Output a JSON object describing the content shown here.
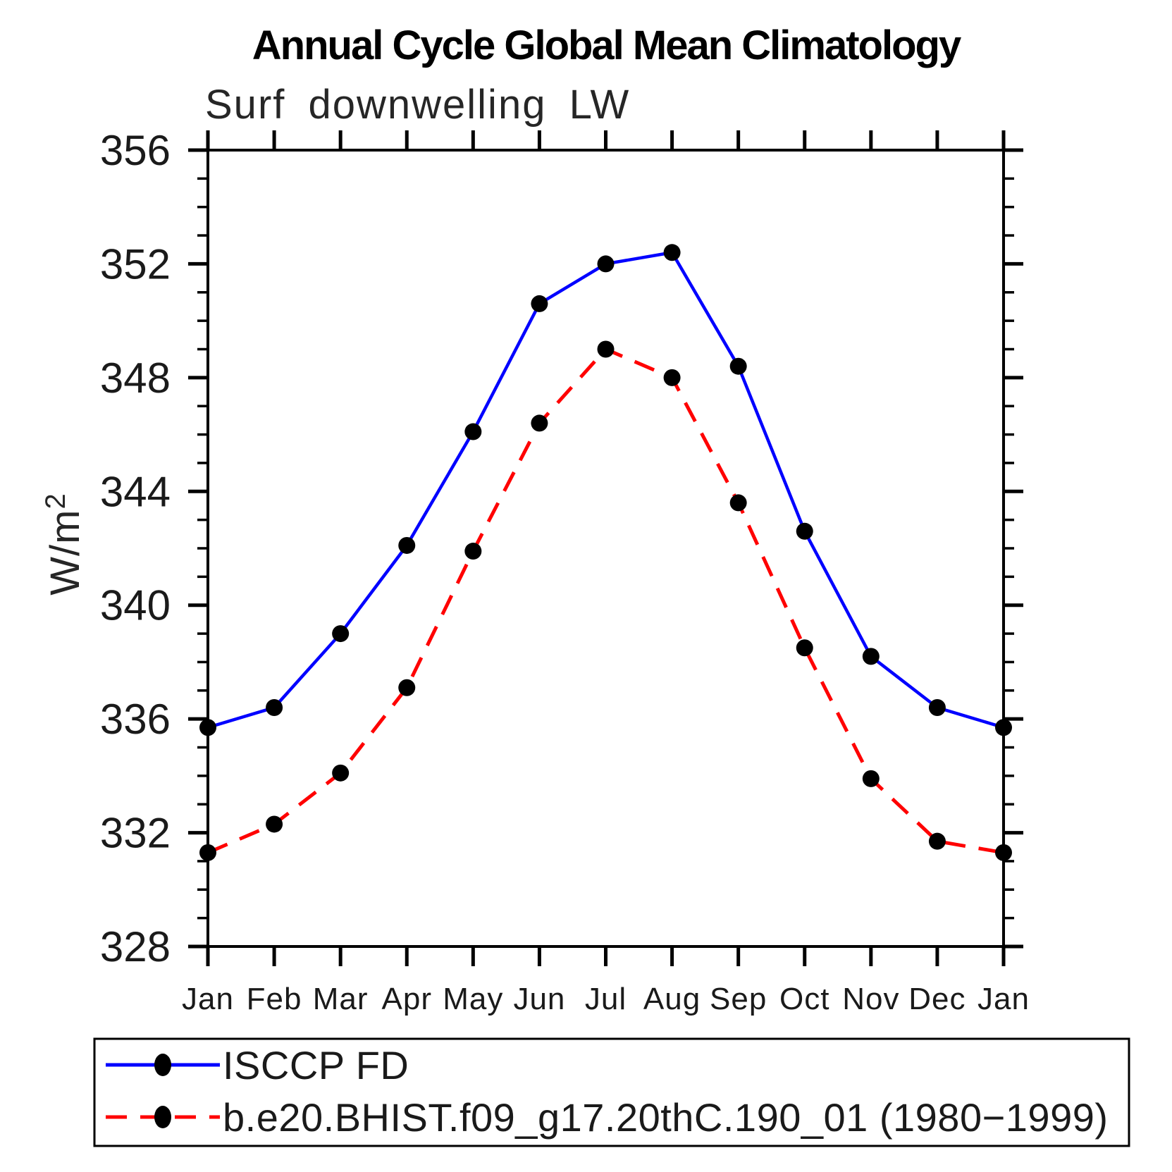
{
  "chart_data": {
    "type": "line",
    "title": "Annual Cycle Global Mean Climatology",
    "subtitle": "Surf downwelling LW",
    "ylabel_base": "W/m",
    "ylabel_sup": "2",
    "categories": [
      "Jan",
      "Feb",
      "Mar",
      "Apr",
      "May",
      "Jun",
      "Jul",
      "Aug",
      "Sep",
      "Oct",
      "Nov",
      "Dec",
      "Jan"
    ],
    "ylim": [
      328,
      356
    ],
    "ytick_major_step": 4,
    "ytick_minor_step": 1,
    "grid": false,
    "legend_position": "bottom-left",
    "axis_color": "#000000",
    "marker_color": "#000000",
    "series": [
      {
        "name": "ISCCP FD",
        "color": "#0000ff",
        "line_style": "solid",
        "marker": "circle",
        "values": [
          335.7,
          336.4,
          339.0,
          342.1,
          346.1,
          350.6,
          352.0,
          352.4,
          348.4,
          342.6,
          338.2,
          336.4,
          335.7
        ]
      },
      {
        "name": "b.e20.BHIST.f09_g17.20thC.190_01 (1980−1999)",
        "color": "#ff0000",
        "line_style": "dashed",
        "marker": "circle",
        "values": [
          331.3,
          332.3,
          334.1,
          337.1,
          341.9,
          346.4,
          349.0,
          348.0,
          343.6,
          338.5,
          333.9,
          331.7,
          331.3
        ]
      }
    ]
  }
}
